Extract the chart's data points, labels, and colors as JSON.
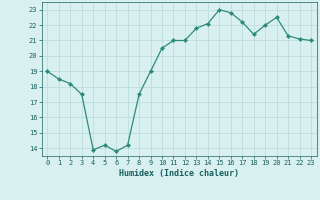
{
  "x": [
    0,
    1,
    2,
    3,
    4,
    5,
    6,
    7,
    8,
    9,
    10,
    11,
    12,
    13,
    14,
    15,
    16,
    17,
    18,
    19,
    20,
    21,
    22,
    23
  ],
  "y": [
    19.0,
    18.5,
    18.2,
    17.5,
    13.9,
    14.2,
    13.8,
    14.2,
    17.5,
    19.0,
    20.5,
    21.0,
    21.0,
    21.8,
    22.1,
    23.0,
    22.8,
    22.2,
    21.4,
    22.0,
    22.5,
    21.3,
    21.1,
    21.0
  ],
  "xlabel": "Humidex (Indice chaleur)",
  "ylim": [
    13.5,
    23.5
  ],
  "xlim": [
    -0.5,
    23.5
  ],
  "yticks": [
    14,
    15,
    16,
    17,
    18,
    19,
    20,
    21,
    22,
    23
  ],
  "xticks": [
    0,
    1,
    2,
    3,
    4,
    5,
    6,
    7,
    8,
    9,
    10,
    11,
    12,
    13,
    14,
    15,
    16,
    17,
    18,
    19,
    20,
    21,
    22,
    23
  ],
  "line_color": "#2e8b7a",
  "marker_color": "#2e8b7a",
  "bg_color": "#d9f0f0",
  "grid_color": "#b8dada",
  "axis_label_color": "#1a5f5f",
  "tick_label_color": "#1a5f5f"
}
